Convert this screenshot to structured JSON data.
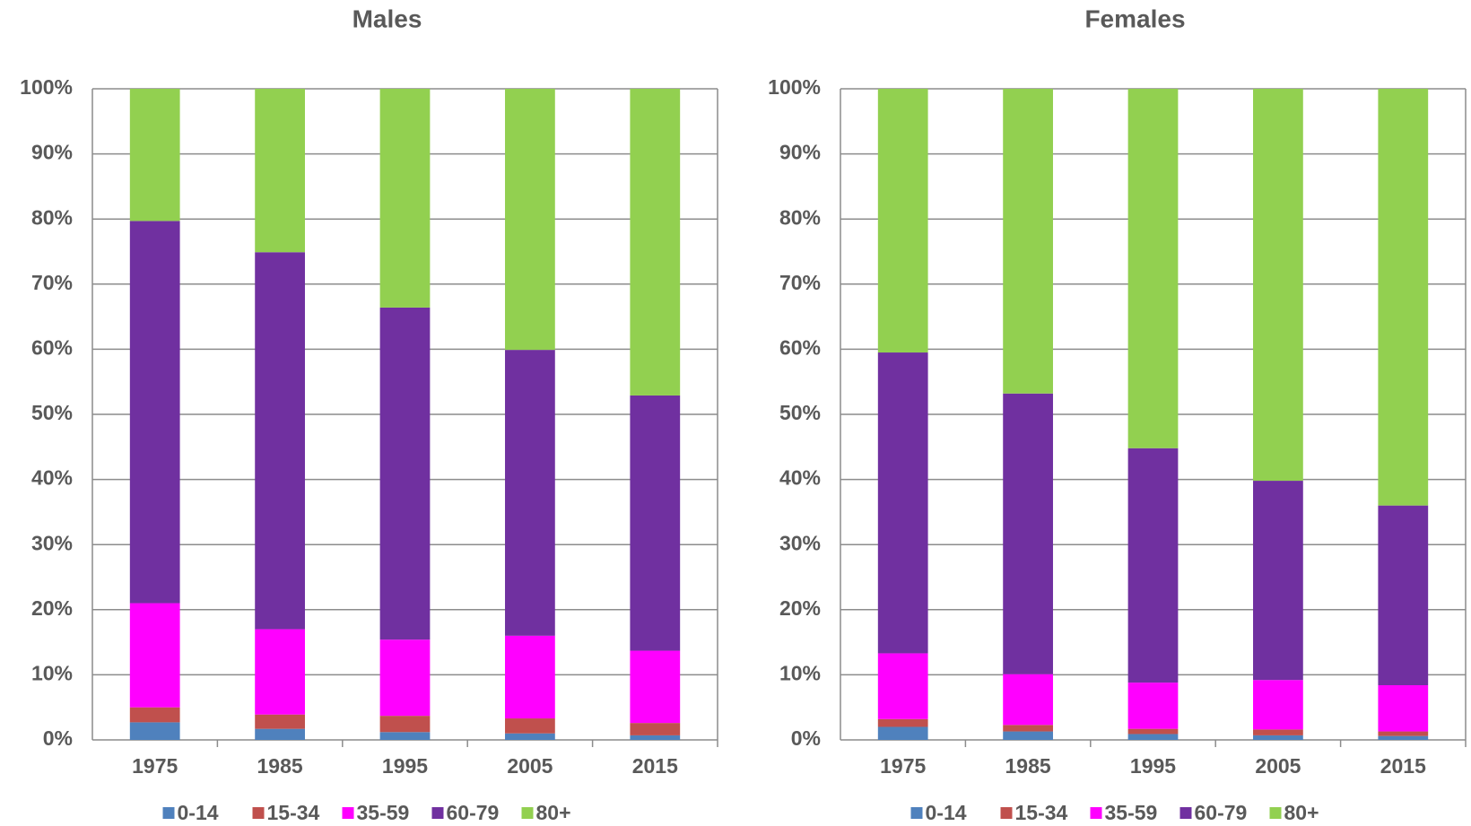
{
  "chart_data": [
    {
      "type": "bar",
      "stacked": true,
      "title": "Males",
      "categories": [
        "1975",
        "1985",
        "1995",
        "2005",
        "2015"
      ],
      "series": [
        {
          "name": "0-14",
          "color": "#4f81bd",
          "values": [
            2.7,
            1.7,
            1.2,
            1.0,
            0.7
          ]
        },
        {
          "name": "15-34",
          "color": "#c0504d",
          "values": [
            2.3,
            2.2,
            2.5,
            2.3,
            1.9
          ]
        },
        {
          "name": "35-59",
          "color": "#ff00ff",
          "values": [
            16.0,
            13.1,
            11.7,
            12.7,
            11.1
          ]
        },
        {
          "name": "60-79",
          "color": "#7030a0",
          "values": [
            58.7,
            57.9,
            51.0,
            43.9,
            39.2
          ]
        },
        {
          "name": "80+",
          "color": "#92d050",
          "values": [
            20.3,
            25.1,
            33.6,
            40.1,
            47.1
          ]
        }
      ],
      "ylim": [
        0,
        100
      ],
      "yticks": [
        {
          "value": 0,
          "label": "0%"
        },
        {
          "value": 10,
          "label": "10%"
        },
        {
          "value": 20,
          "label": "20%"
        },
        {
          "value": 30,
          "label": "30%"
        },
        {
          "value": 40,
          "label": "40%"
        },
        {
          "value": 50,
          "label": "50%"
        },
        {
          "value": 60,
          "label": "60%"
        },
        {
          "value": 70,
          "label": "70%"
        },
        {
          "value": 80,
          "label": "80%"
        },
        {
          "value": 90,
          "label": "90%"
        },
        {
          "value": 100,
          "label": "100%"
        }
      ],
      "grid": true,
      "legend": "bottom"
    },
    {
      "type": "bar",
      "stacked": true,
      "title": "Females",
      "categories": [
        "1975",
        "1985",
        "1995",
        "2005",
        "2015"
      ],
      "series": [
        {
          "name": "0-14",
          "color": "#4f81bd",
          "values": [
            2.0,
            1.3,
            0.9,
            0.7,
            0.6
          ]
        },
        {
          "name": "15-34",
          "color": "#c0504d",
          "values": [
            1.2,
            1.0,
            0.8,
            0.9,
            0.7
          ]
        },
        {
          "name": "35-59",
          "color": "#ff00ff",
          "values": [
            10.1,
            7.8,
            7.1,
            7.6,
            7.1
          ]
        },
        {
          "name": "60-79",
          "color": "#7030a0",
          "values": [
            46.2,
            43.1,
            36.0,
            30.6,
            27.6
          ]
        },
        {
          "name": "80+",
          "color": "#92d050",
          "values": [
            40.5,
            46.8,
            55.2,
            60.2,
            64.0
          ]
        }
      ],
      "ylim": [
        0,
        100
      ],
      "yticks": [
        {
          "value": 0,
          "label": "0%"
        },
        {
          "value": 10,
          "label": "10%"
        },
        {
          "value": 20,
          "label": "20%"
        },
        {
          "value": 30,
          "label": "30%"
        },
        {
          "value": 40,
          "label": "40%"
        },
        {
          "value": 50,
          "label": "50%"
        },
        {
          "value": 60,
          "label": "60%"
        },
        {
          "value": 70,
          "label": "70%"
        },
        {
          "value": 80,
          "label": "80%"
        },
        {
          "value": 90,
          "label": "90%"
        },
        {
          "value": 100,
          "label": "100%"
        }
      ],
      "grid": true,
      "legend": "bottom"
    }
  ]
}
